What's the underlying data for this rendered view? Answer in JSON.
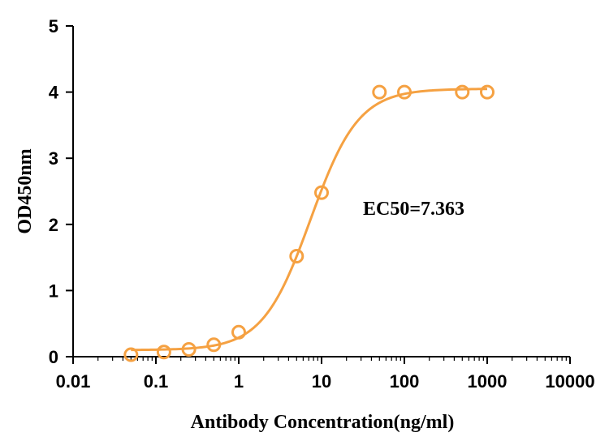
{
  "chart_data": {
    "type": "scatter",
    "title": "",
    "xlabel": "Antibody Concentration(ng/ml)",
    "ylabel": "OD450nm",
    "xscale": "log",
    "xlim": [
      0.01,
      10000
    ],
    "ylim": [
      0,
      5
    ],
    "x_ticks": [
      "0.01",
      "0.1",
      "1",
      "10",
      "100",
      "1000",
      "10000"
    ],
    "y_ticks": [
      "0",
      "1",
      "2",
      "3",
      "4",
      "5"
    ],
    "grid": false,
    "legend": "none",
    "annotation": "EC50=7.363",
    "color": "#F5A142",
    "series": [
      {
        "x": [
          0.05,
          0.125,
          0.25,
          0.5,
          1,
          5,
          10,
          50,
          100,
          500,
          1000
        ],
        "y": [
          0.03,
          0.07,
          0.11,
          0.18,
          0.37,
          1.52,
          2.48,
          4.0,
          4.0,
          4.0,
          4.0
        ]
      }
    ],
    "fit": {
      "model": "4PL sigmoidal",
      "bottom": 0.1,
      "top": 4.05,
      "ec50": 7.363,
      "hill": 1.5
    }
  }
}
